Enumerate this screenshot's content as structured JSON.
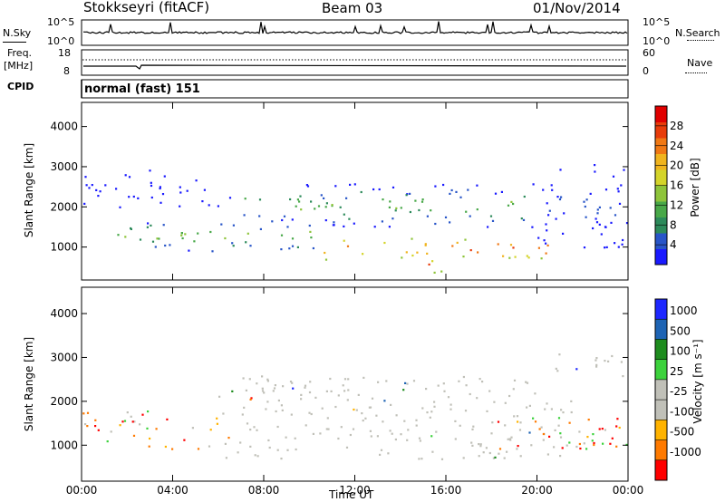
{
  "header": {
    "station": "Stokkseyri (fitACF)",
    "beam": "Beam 03",
    "date": "01/Nov/2014"
  },
  "top_panels": {
    "nsky_label": "N.Sky",
    "nsky_ticks": [
      "10^5",
      "10^0"
    ],
    "nsearch_label": "N.Search",
    "nsearch_ticks": [
      "10^5",
      "10^0"
    ],
    "freq_label": "Freq.",
    "freq_unit": "[MHz]",
    "freq_ticks": [
      "18",
      "8"
    ],
    "nave_label": "Nave",
    "nave_ticks": [
      "60",
      "0"
    ],
    "cpid_label": "CPID",
    "cpid_value": "normal (fast) 151"
  },
  "colors": {
    "power_scale": [
      "#1a1aff",
      "#2855c8",
      "#2c8a5a",
      "#48a848",
      "#8ec43a",
      "#d4d42a",
      "#f0b41e",
      "#f07814",
      "#e83c0a",
      "#e00000"
    ],
    "velocity_scale": [
      "#ff0000",
      "#ff7a00",
      "#ffb300",
      "#c0c0b8",
      "#c0c0b8",
      "#3cd23c",
      "#1e8c1e",
      "#1e64b4",
      "#1e28ff"
    ]
  },
  "chart_data": [
    {
      "type": "heatmap",
      "title": "",
      "ylabel": "Slant Range [km]",
      "xlabel": "Time UT",
      "x_ticks": [
        "00:00",
        "04:00",
        "08:00",
        "12:00",
        "16:00",
        "20:00",
        "00:00"
      ],
      "x_range_hours": [
        0,
        24
      ],
      "y_ticks": [
        1000,
        2000,
        3000,
        4000
      ],
      "ylim": [
        180,
        4600
      ],
      "colorbar_label": "Power [dB]",
      "colorbar_ticks": [
        4,
        8,
        12,
        16,
        20,
        24,
        28
      ],
      "colorbar_range": [
        0,
        32
      ],
      "features": [
        {
          "name": "main_echo_band",
          "t_start": 10.5,
          "t_end": 20.5,
          "range_km": [
            700,
            1250
          ],
          "power_db": 30
        },
        {
          "name": "early_band",
          "t_start": 0,
          "t_end": 10.5,
          "range_km": [
            900,
            1700
          ],
          "power_db": 18
        },
        {
          "name": "upper_band",
          "t_start": 7.0,
          "t_end": 20.0,
          "range_km": [
            1500,
            2600
          ],
          "power_db": 16
        },
        {
          "name": "morning_upper",
          "t_start": 0,
          "t_end": 7.0,
          "range_km": [
            2000,
            3000
          ],
          "power_db": 6
        },
        {
          "name": "evening_rise",
          "t_start": 20.0,
          "t_end": 24.0,
          "range_km": [
            1000,
            3100
          ],
          "power_db": 8
        },
        {
          "name": "patch_15h",
          "t_start": 14.8,
          "t_end": 16.5,
          "range_km": [
            350,
            800
          ],
          "power_db": 28
        }
      ]
    },
    {
      "type": "heatmap",
      "title": "",
      "ylabel": "Slant Range [km]",
      "xlabel": "Time UT",
      "x_ticks": [
        "00:00",
        "04:00",
        "08:00",
        "12:00",
        "16:00",
        "20:00",
        "00:00"
      ],
      "x_range_hours": [
        0,
        24
      ],
      "y_ticks": [
        1000,
        2000,
        3000,
        4000
      ],
      "ylim": [
        180,
        4600
      ],
      "colorbar_label": "Velocity [m s⁻¹]",
      "colorbar_ticks": [
        "1000",
        "500",
        "100",
        "25",
        "-25",
        "-100",
        "-500",
        "-1000"
      ],
      "features": [
        {
          "name": "ground_scatter_main",
          "t_start": 6.0,
          "t_end": 21.5,
          "range_km": [
            700,
            2600
          ],
          "velocity": 0
        },
        {
          "name": "early_mixed",
          "t_start": 0,
          "t_end": 6.5,
          "range_km": [
            900,
            1800
          ],
          "velocity": -300
        },
        {
          "name": "evening_negative",
          "t_start": 18.0,
          "t_end": 24.0,
          "range_km": [
            900,
            1700
          ],
          "velocity": -400
        },
        {
          "name": "evening_rise_gs",
          "t_start": 20.5,
          "t_end": 24.0,
          "range_km": [
            2500,
            3200
          ],
          "velocity": 0
        }
      ]
    }
  ]
}
